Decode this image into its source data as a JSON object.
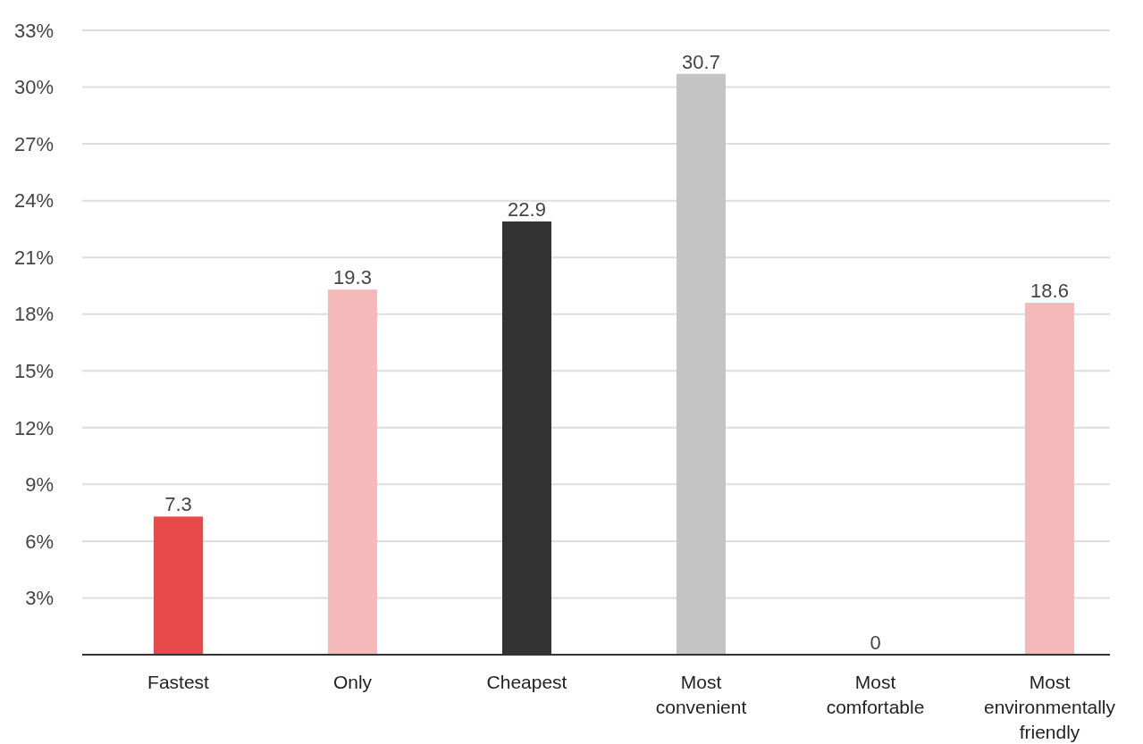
{
  "chart_data": {
    "type": "bar",
    "categories": [
      "Fastest",
      "Only",
      "Cheapest",
      "Most convenient",
      "Most comfortable",
      "Most environmentally friendly"
    ],
    "values": [
      7.3,
      19.3,
      22.9,
      30.7,
      0,
      18.6
    ],
    "colors": [
      "#e84a4a",
      "#f5b9b9",
      "#333333",
      "#c4c4c4",
      "#c4c4c4",
      "#f5b9b9"
    ],
    "ylim": [
      0,
      33
    ],
    "yticks": [
      {
        "value": 3,
        "label": "3%"
      },
      {
        "value": 6,
        "label": "6%"
      },
      {
        "value": 9,
        "label": "9%"
      },
      {
        "value": 12,
        "label": "12%"
      },
      {
        "value": 15,
        "label": "15%"
      },
      {
        "value": 18,
        "label": "18%"
      },
      {
        "value": 21,
        "label": "21%"
      },
      {
        "value": 24,
        "label": "24%"
      },
      {
        "value": 27,
        "label": "27%"
      },
      {
        "value": 30,
        "label": "30%"
      },
      {
        "value": 33,
        "label": "33%"
      }
    ],
    "grid": "y",
    "data_labels": true
  }
}
